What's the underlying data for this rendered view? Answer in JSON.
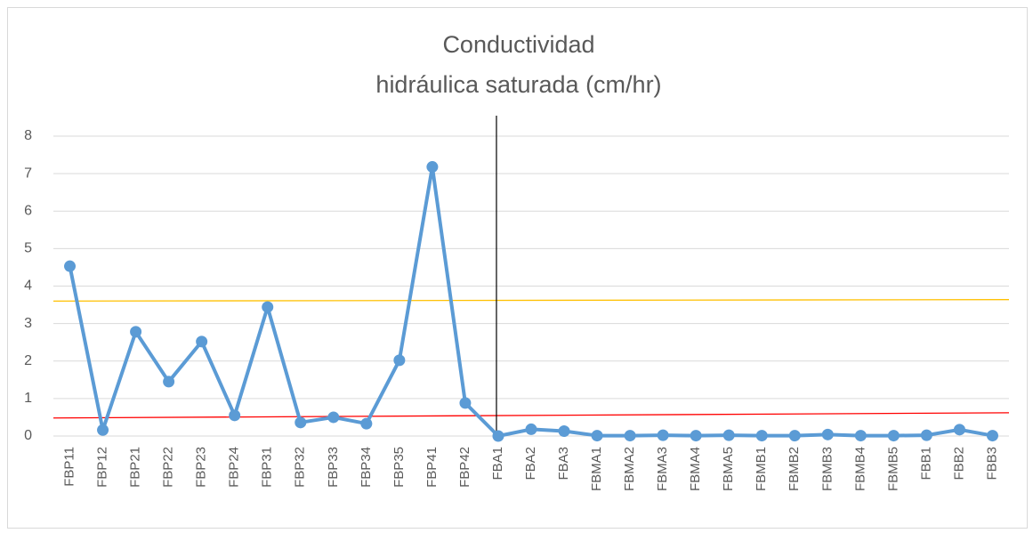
{
  "chart_data": {
    "type": "line",
    "title": [
      "Conductividad",
      "hidráulica saturada (cm/hr)"
    ],
    "categories": [
      "FBP11",
      "FBP12",
      "FBP21",
      "FBP22",
      "FBP23",
      "FBP24",
      "FBP31",
      "FBP32",
      "FBP33",
      "FBP34",
      "FBP35",
      "FBP41",
      "FBP42",
      "FBA1",
      "FBA2",
      "FBA3",
      "FBMA1",
      "FBMA2",
      "FBMA3",
      "FBMA4",
      "FBMA5",
      "FBMB1",
      "FBMB2",
      "FBMB3",
      "FBMB4",
      "FBMB5",
      "FBB1",
      "FBB2",
      "FBB3"
    ],
    "series": [
      {
        "color": "#5b9bd5",
        "values": [
          4.53,
          0.16,
          2.78,
          1.45,
          2.52,
          0.55,
          3.44,
          0.36,
          0.5,
          0.33,
          2.02,
          7.18,
          0.88,
          0,
          0.18,
          0.13,
          0.01,
          0.01,
          0.02,
          0.01,
          0.02,
          0.01,
          0.01,
          0.04,
          0.01,
          0.01,
          0.02,
          0.17,
          0.01
        ]
      }
    ],
    "trend_lines": [
      {
        "color": "#ffc000",
        "start": 3.6,
        "end": 3.64
      },
      {
        "color": "#ff0000",
        "start": 0.48,
        "end": 0.62
      }
    ],
    "divider": "FBA1",
    "ylim": [
      0,
      8
    ],
    "yticks": [
      0,
      1,
      2,
      3,
      4,
      5,
      6,
      7,
      8
    ],
    "grid": true
  }
}
